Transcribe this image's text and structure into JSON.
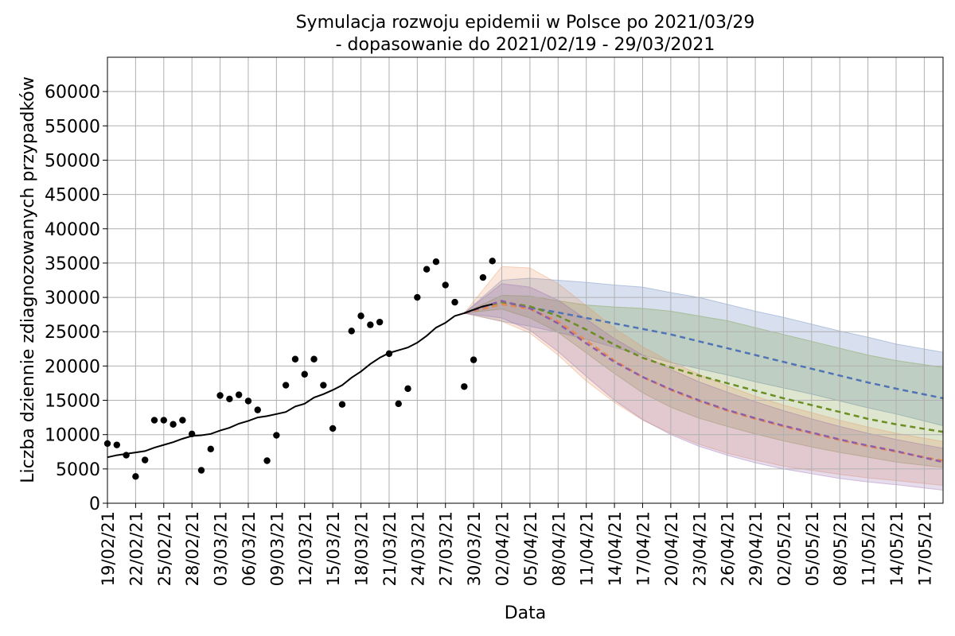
{
  "chart_data": {
    "type": "line",
    "title_line1": "Symulacja rozwoju epidemii w Polsce po 2021/03/29",
    "title_line2": "- dopasowanie do 2021/02/19 - 29/03/2021",
    "xlabel": "Data",
    "ylabel": "Liczba dziennie zdiagnozowanych przypadków",
    "xlim": [
      "2021-02-19",
      "2021-05-19"
    ],
    "ylim": [
      0,
      65000
    ],
    "grid": true,
    "yticks": [
      0,
      5000,
      10000,
      15000,
      20000,
      25000,
      30000,
      35000,
      40000,
      45000,
      50000,
      55000,
      60000
    ],
    "xtick_dates": [
      "2021-02-19",
      "2021-02-22",
      "2021-02-25",
      "2021-02-28",
      "2021-03-03",
      "2021-03-06",
      "2021-03-09",
      "2021-03-12",
      "2021-03-15",
      "2021-03-18",
      "2021-03-21",
      "2021-03-24",
      "2021-03-27",
      "2021-03-30",
      "2021-04-02",
      "2021-04-05",
      "2021-04-08",
      "2021-04-11",
      "2021-04-14",
      "2021-04-17",
      "2021-04-20",
      "2021-04-23",
      "2021-04-26",
      "2021-04-29",
      "2021-05-02",
      "2021-05-05",
      "2021-05-08",
      "2021-05-11",
      "2021-05-14",
      "2021-05-17"
    ],
    "xtick_labels": [
      "19/02/21",
      "22/02/21",
      "25/02/21",
      "28/02/21",
      "03/03/21",
      "06/03/21",
      "09/03/21",
      "12/03/21",
      "15/03/21",
      "18/03/21",
      "21/03/21",
      "24/03/21",
      "27/03/21",
      "30/03/21",
      "02/04/21",
      "05/04/21",
      "08/04/21",
      "11/04/21",
      "14/04/21",
      "17/04/21",
      "20/04/21",
      "23/04/21",
      "26/04/21",
      "29/04/21",
      "02/05/21",
      "05/05/21",
      "08/05/21",
      "11/05/21",
      "14/05/21",
      "17/05/21"
    ],
    "observed_points": {
      "x": [
        "2021-02-19",
        "2021-02-20",
        "2021-02-21",
        "2021-02-22",
        "2021-02-23",
        "2021-02-24",
        "2021-02-25",
        "2021-02-26",
        "2021-02-27",
        "2021-02-28",
        "2021-03-01",
        "2021-03-02",
        "2021-03-03",
        "2021-03-04",
        "2021-03-05",
        "2021-03-06",
        "2021-03-07",
        "2021-03-08",
        "2021-03-09",
        "2021-03-10",
        "2021-03-11",
        "2021-03-12",
        "2021-03-13",
        "2021-03-14",
        "2021-03-15",
        "2021-03-16",
        "2021-03-17",
        "2021-03-18",
        "2021-03-19",
        "2021-03-20",
        "2021-03-21",
        "2021-03-22",
        "2021-03-23",
        "2021-03-24",
        "2021-03-25",
        "2021-03-26",
        "2021-03-27",
        "2021-03-28",
        "2021-03-29",
        "2021-03-30",
        "2021-03-31",
        "2021-04-01"
      ],
      "y": [
        8700,
        8500,
        7000,
        3900,
        6300,
        12100,
        12100,
        11500,
        12100,
        10100,
        4800,
        7900,
        15700,
        15200,
        15800,
        14900,
        13600,
        6200,
        9900,
        17200,
        21000,
        18800,
        21000,
        17200,
        10900,
        14400,
        25100,
        27300,
        26000,
        26400,
        21800,
        14500,
        16700,
        30000,
        34100,
        35200,
        31800,
        29300,
        17000,
        20900,
        32900,
        35300
      ]
    },
    "fitted_line": {
      "x": [
        "2021-02-19",
        "2021-02-20",
        "2021-02-21",
        "2021-02-22",
        "2021-02-23",
        "2021-02-24",
        "2021-02-25",
        "2021-02-26",
        "2021-02-27",
        "2021-02-28",
        "2021-03-01",
        "2021-03-02",
        "2021-03-03",
        "2021-03-04",
        "2021-03-05",
        "2021-03-06",
        "2021-03-07",
        "2021-03-08",
        "2021-03-09",
        "2021-03-10",
        "2021-03-11",
        "2021-03-12",
        "2021-03-13",
        "2021-03-14",
        "2021-03-15",
        "2021-03-16",
        "2021-03-17",
        "2021-03-18",
        "2021-03-19",
        "2021-03-20",
        "2021-03-21",
        "2021-03-22",
        "2021-03-23",
        "2021-03-24",
        "2021-03-25",
        "2021-03-26",
        "2021-03-27",
        "2021-03-28",
        "2021-03-29",
        "2021-03-30",
        "2021-03-31",
        "2021-04-01"
      ],
      "y": [
        6700,
        7000,
        7200,
        7400,
        7600,
        8100,
        8500,
        8900,
        9400,
        9800,
        9900,
        10100,
        10600,
        11000,
        11600,
        12000,
        12500,
        12700,
        13000,
        13300,
        14100,
        14500,
        15400,
        15900,
        16500,
        17200,
        18300,
        19200,
        20300,
        21200,
        21900,
        22300,
        22700,
        23400,
        24400,
        25600,
        26300,
        27300,
        27700,
        28200,
        28700,
        29000
      ]
    },
    "scenarios": [
      {
        "color": "#4f73b5",
        "x": [
          "2021-03-29",
          "2021-04-02",
          "2021-04-05",
          "2021-04-08",
          "2021-04-11",
          "2021-04-14",
          "2021-04-17",
          "2021-04-20",
          "2021-04-23",
          "2021-04-26",
          "2021-04-29",
          "2021-05-02",
          "2021-05-05",
          "2021-05-08",
          "2021-05-11",
          "2021-05-14",
          "2021-05-19"
        ],
        "y": [
          27700,
          29000,
          28500,
          27800,
          27000,
          26200,
          25400,
          24600,
          23600,
          22600,
          21600,
          20600,
          19600,
          18600,
          17600,
          16700,
          15300
        ],
        "upper": [
          27700,
          32500,
          32800,
          32500,
          32200,
          31800,
          31500,
          30700,
          30000,
          29000,
          28000,
          27100,
          26100,
          25100,
          24200,
          23200,
          22000
        ],
        "lower": [
          27700,
          26500,
          25800,
          24900,
          23900,
          22700,
          21600,
          20500,
          19600,
          18700,
          17700,
          16800,
          15900,
          14900,
          13900,
          13000,
          11300
        ]
      },
      {
        "color": "#6b8e23",
        "x": [
          "2021-03-29",
          "2021-04-02",
          "2021-04-05",
          "2021-04-08",
          "2021-04-11",
          "2021-04-14",
          "2021-04-17",
          "2021-04-20",
          "2021-04-23",
          "2021-04-26",
          "2021-04-29",
          "2021-05-02",
          "2021-05-05",
          "2021-05-08",
          "2021-05-11",
          "2021-05-14",
          "2021-05-19"
        ],
        "y": [
          27700,
          29300,
          28700,
          27300,
          25300,
          23100,
          21200,
          19800,
          18600,
          17500,
          16400,
          15300,
          14300,
          13300,
          12300,
          11500,
          10400
        ],
        "upper": [
          27700,
          30300,
          30200,
          29500,
          28900,
          28600,
          28400,
          28000,
          27300,
          26600,
          25600,
          24600,
          23600,
          22600,
          21600,
          20800,
          19800
        ],
        "lower": [
          27700,
          28300,
          27000,
          24900,
          21900,
          18900,
          16100,
          14000,
          12400,
          11200,
          10100,
          9100,
          8200,
          7400,
          6700,
          6000,
          5200
        ]
      },
      {
        "color": "#e88b57",
        "x": [
          "2021-03-29",
          "2021-04-02",
          "2021-04-05",
          "2021-04-08",
          "2021-04-11",
          "2021-04-14",
          "2021-04-17",
          "2021-04-20",
          "2021-04-23",
          "2021-04-26",
          "2021-04-29",
          "2021-05-02",
          "2021-05-05",
          "2021-05-08",
          "2021-05-11",
          "2021-05-14",
          "2021-05-19"
        ],
        "y": [
          27700,
          29000,
          28300,
          26500,
          23700,
          20800,
          18400,
          16500,
          14900,
          13500,
          12300,
          11200,
          10200,
          9200,
          8300,
          7500,
          6200
        ],
        "upper": [
          27700,
          34500,
          34300,
          32000,
          28800,
          25500,
          22800,
          20600,
          18800,
          17100,
          15600,
          14300,
          13200,
          12100,
          11100,
          10200,
          9000
        ],
        "lower": [
          27700,
          26500,
          24800,
          21600,
          17800,
          14700,
          12100,
          10200,
          8600,
          7300,
          6300,
          5400,
          4800,
          4200,
          3700,
          3300,
          2600
        ]
      },
      {
        "color": "#8e5fa8",
        "x": [
          "2021-03-29",
          "2021-04-02",
          "2021-04-05",
          "2021-04-08",
          "2021-04-11",
          "2021-04-14",
          "2021-04-17",
          "2021-04-20",
          "2021-04-23",
          "2021-04-26",
          "2021-04-29",
          "2021-05-02",
          "2021-05-05",
          "2021-05-08",
          "2021-05-11",
          "2021-05-14",
          "2021-05-19"
        ],
        "y": [
          27700,
          29500,
          28400,
          26200,
          23300,
          20600,
          18400,
          16600,
          15000,
          13600,
          12400,
          11300,
          10300,
          9300,
          8400,
          7600,
          6000
        ],
        "upper": [
          27700,
          32000,
          31500,
          29600,
          26800,
          24000,
          21600,
          19500,
          17700,
          16200,
          14800,
          13500,
          12300,
          11200,
          10200,
          9300,
          8000
        ],
        "lower": [
          27700,
          27000,
          25200,
          22100,
          18500,
          15000,
          12200,
          10000,
          8300,
          7000,
          5900,
          5000,
          4300,
          3600,
          3100,
          2700,
          1900
        ]
      }
    ]
  }
}
